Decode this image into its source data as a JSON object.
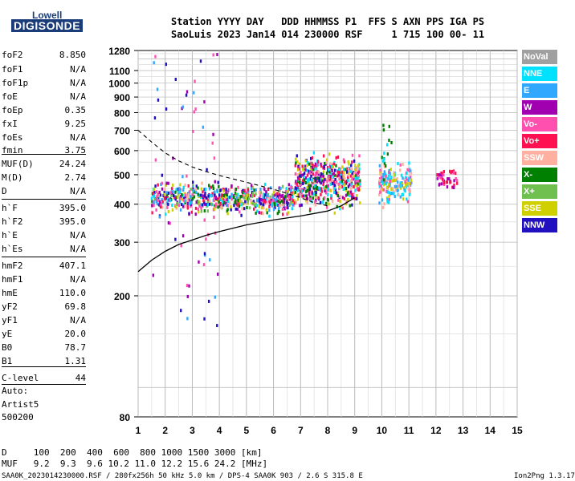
{
  "logo": {
    "top": "Lowell",
    "bottom": "DIGISONDE"
  },
  "header": {
    "line1": "Station YYYY DAY   DDD HHMMSS P1  FFS S AXN PPS IGA PS",
    "line2": "SaoLuis 2023 Jan14 014 230000 RSF     1 715 100 00- 11"
  },
  "params": [
    {
      "k": "foF2",
      "v": "8.850"
    },
    {
      "k": "foF1",
      "v": "N/A"
    },
    {
      "k": "foF1p",
      "v": "N/A"
    },
    {
      "k": "foE",
      "v": "N/A"
    },
    {
      "k": "foEp",
      "v": "0.35"
    },
    {
      "k": "fxI",
      "v": "9.25"
    },
    {
      "k": "foEs",
      "v": "N/A"
    },
    {
      "k": "fmin",
      "v": "3.75"
    },
    {
      "k": "MUF(D)",
      "v": "24.24"
    },
    {
      "k": "M(D)",
      "v": "2.74"
    },
    {
      "k": "D",
      "v": "N/A"
    },
    {
      "k": "h`F",
      "v": "395.0"
    },
    {
      "k": "h`F2",
      "v": "395.0"
    },
    {
      "k": "h`E",
      "v": "N/A"
    },
    {
      "k": "h`Es",
      "v": "N/A"
    },
    {
      "k": "hmF2",
      "v": "407.1"
    },
    {
      "k": "hmF1",
      "v": "N/A"
    },
    {
      "k": "hmE",
      "v": "110.0"
    },
    {
      "k": "yF2",
      "v": "69.8"
    },
    {
      "k": "yF1",
      "v": "N/A"
    },
    {
      "k": "yE",
      "v": "20.0"
    },
    {
      "k": "B0",
      "v": "78.7"
    },
    {
      "k": "B1",
      "v": "1.31"
    },
    {
      "k": "C-level",
      "v": "44"
    }
  ],
  "auto": {
    "l1": "Auto:",
    "l2": "Artist5",
    "l3": "500200"
  },
  "table": {
    "d_row": "D     100  200  400  600  800 1000 1500 3000 [km]",
    "muf_row": "MUF   9.2  9.3  9.6 10.2 11.0 12.2 15.6 24.2 [MHz]"
  },
  "footer": {
    "left": "SAA0K_2023014230000.RSF / 280fx256h 50 kHz 5.0 km / DPS-4 SAA0K 903 / 2.6 S 315.8 E",
    "right": "Ion2Png 1.3.17"
  },
  "legend": [
    {
      "label": "NoVal",
      "color": "#a0a0a0"
    },
    {
      "label": "NNE",
      "color": "#00e0ff"
    },
    {
      "label": "E",
      "color": "#30a8ff"
    },
    {
      "label": "W",
      "color": "#a000b0"
    },
    {
      "label": "Vo-",
      "color": "#ff50b0"
    },
    {
      "label": "Vo+",
      "color": "#ff1050"
    },
    {
      "label": "SSW",
      "color": "#ffb0a0"
    },
    {
      "label": "X-",
      "color": "#008000"
    },
    {
      "label": "X+",
      "color": "#70c050"
    },
    {
      "label": "SSE",
      "color": "#d0d000"
    },
    {
      "label": "NNW",
      "color": "#2010c0"
    }
  ],
  "chart_data": {
    "type": "scatter",
    "title": "",
    "xlabel": "",
    "ylabel": "",
    "xlim": [
      1,
      15
    ],
    "ylim": [
      80,
      1280
    ],
    "y_scale": "log",
    "grid": true,
    "x_ticks": [
      1,
      2,
      3,
      4,
      5,
      6,
      7,
      8,
      9,
      10,
      11,
      12,
      13,
      14,
      15
    ],
    "y_ticks": [
      80,
      200,
      300,
      400,
      500,
      600,
      700,
      800,
      900,
      1000,
      1100,
      1280
    ],
    "profile_curve": {
      "x": [
        1.0,
        1.5,
        2.0,
        2.5,
        3.0,
        3.5,
        4.0,
        5.0,
        6.0,
        7.0,
        8.0,
        8.5,
        9.0
      ],
      "y": [
        240,
        262,
        280,
        295,
        305,
        316,
        325,
        342,
        355,
        366,
        380,
        395,
        420
      ]
    },
    "dashed_curve": {
      "x": [
        1.0,
        1.5,
        2.0,
        2.5,
        3.0,
        3.5,
        4.0,
        5.0,
        6.0,
        7.0,
        7.5,
        8.0
      ],
      "y": [
        700,
        640,
        590,
        555,
        530,
        512,
        497,
        472,
        448,
        420,
        405,
        395
      ]
    },
    "clusters": [
      {
        "x": [
          1.5,
          6.8
        ],
        "y": [
          355,
          480
        ],
        "n": 650,
        "colors": [
          "#a000b0",
          "#ff50b0",
          "#ff1050",
          "#30a8ff",
          "#2010c0",
          "#70c050",
          "#d0d000",
          "#00e0ff",
          "#ffb0a0",
          "#008000"
        ]
      },
      {
        "x": [
          6.8,
          9.2
        ],
        "y": [
          355,
          600
        ],
        "n": 520,
        "colors": [
          "#ff1050",
          "#ff50b0",
          "#a000b0",
          "#ffb0a0",
          "#d0d000",
          "#2010c0",
          "#00e0ff",
          "#008000"
        ]
      },
      {
        "x": [
          9.9,
          11.1
        ],
        "y": [
          380,
          560
        ],
        "n": 170,
        "colors": [
          "#00e0ff",
          "#30a8ff",
          "#d0d000",
          "#ff50b0",
          "#ffb0a0"
        ]
      },
      {
        "x": [
          12.0,
          12.8
        ],
        "y": [
          440,
          540
        ],
        "n": 45,
        "colors": [
          "#ff1050",
          "#a000b0",
          "#ff50b0"
        ]
      },
      {
        "x": [
          1.5,
          4.0
        ],
        "y": [
          150,
          1280
        ],
        "n": 70,
        "colors": [
          "#a000b0",
          "#ff50b0",
          "#30a8ff",
          "#2010c0"
        ]
      },
      {
        "x": [
          10.0,
          10.4
        ],
        "y": [
          320,
          800
        ],
        "n": 20,
        "colors": [
          "#00e0ff",
          "#008000",
          "#ffb0a0"
        ]
      }
    ]
  }
}
